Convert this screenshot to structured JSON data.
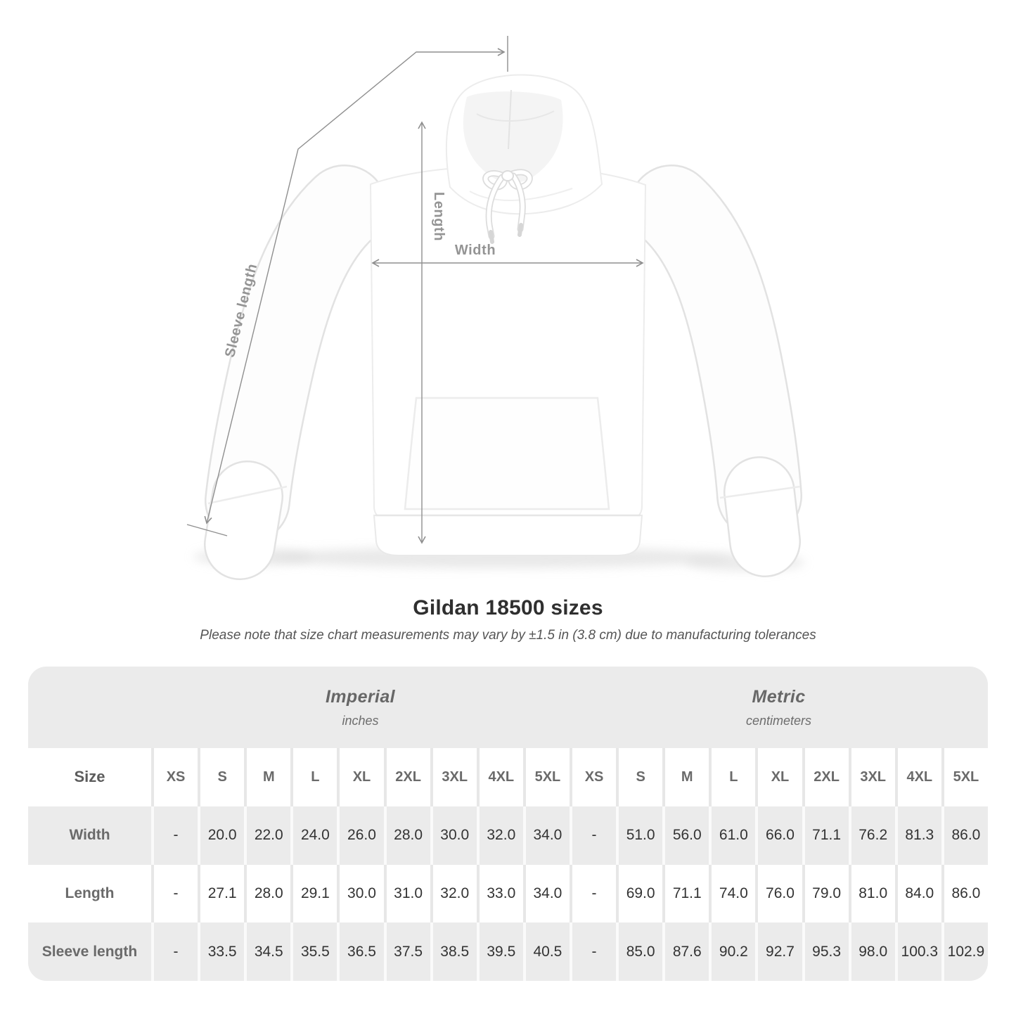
{
  "title": "Gildan 18500 sizes",
  "note": "Please note that size chart measurements may vary by ±1.5 in (3.8 cm) due to manufacturing tolerances",
  "figure": {
    "length_label": "Length",
    "width_label": "Width",
    "sleeve_length_label": "Sleeve length"
  },
  "table": {
    "size_col_header": "Size",
    "unit_groups": [
      {
        "label": "Imperial",
        "unit": "inches"
      },
      {
        "label": "Metric",
        "unit": "centimeters"
      }
    ],
    "sizes": [
      "XS",
      "S",
      "M",
      "L",
      "XL",
      "2XL",
      "3XL",
      "4XL",
      "5XL"
    ],
    "rows": [
      {
        "label": "Width",
        "imperial": [
          "-",
          "20.0",
          "22.0",
          "24.0",
          "26.0",
          "28.0",
          "30.0",
          "32.0",
          "34.0"
        ],
        "metric": [
          "-",
          "51.0",
          "56.0",
          "61.0",
          "66.0",
          "71.1",
          "76.2",
          "81.3",
          "86.0"
        ]
      },
      {
        "label": "Length",
        "imperial": [
          "-",
          "27.1",
          "28.0",
          "29.1",
          "30.0",
          "31.0",
          "32.0",
          "33.0",
          "34.0"
        ],
        "metric": [
          "-",
          "69.0",
          "71.1",
          "74.0",
          "76.0",
          "79.0",
          "81.0",
          "84.0",
          "86.0"
        ]
      },
      {
        "label": "Sleeve length",
        "imperial": [
          "-",
          "33.5",
          "34.5",
          "35.5",
          "36.5",
          "37.5",
          "38.5",
          "39.5",
          "40.5"
        ],
        "metric": [
          "-",
          "85.0",
          "87.6",
          "90.2",
          "92.7",
          "95.3",
          "98.0",
          "100.3",
          "102.9"
        ]
      }
    ]
  },
  "colors": {
    "band-gray": "#ebebeb",
    "row-gray": "#ebebeb",
    "sep-on-white": "#e7e7e7",
    "sep-on-gray": "#fafafa",
    "value-text": "#333333",
    "label-text": "#6a6a6a",
    "heading-text": "#2f2f2f",
    "note-text": "#555555",
    "line-gray": "#8f8f8f",
    "line-label": "#949494"
  }
}
